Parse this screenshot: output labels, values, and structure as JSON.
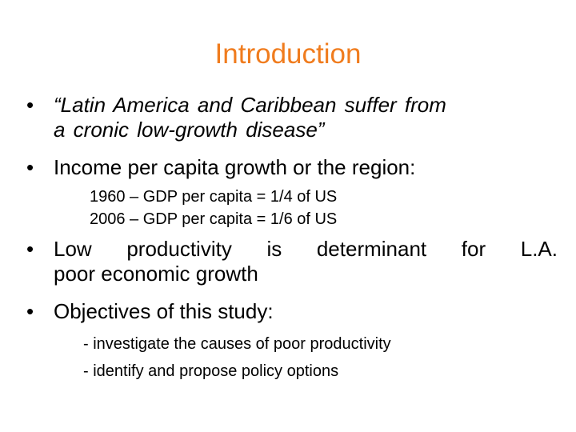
{
  "slide": {
    "title": "Introduction",
    "title_color": "#f07c1e",
    "bullet_glyph": "•",
    "bullets": [
      {
        "line1": "“Latin America and Caribbean suffer from",
        "line2": "a cronic low-growth disease”"
      },
      {
        "line1": "Income per capita growth or the region:"
      },
      {
        "line1": "Low productivity is determinant for L.A.",
        "line2": "poor economic growth"
      },
      {
        "line1": "Objectives of this study:"
      }
    ],
    "income_points": [
      "1960 – GDP per capita = 1/4 of US",
      "2006 – GDP per capita = 1/6 of US"
    ],
    "objectives": [
      "- investigate the causes of poor productivity",
      "- identify and propose policy options"
    ]
  }
}
